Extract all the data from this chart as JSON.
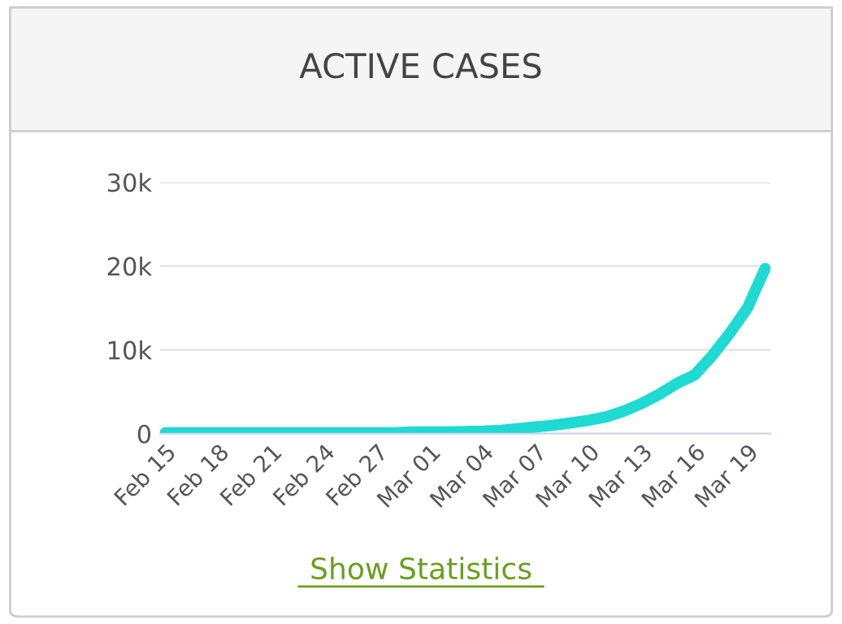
{
  "chart_data": {
    "type": "line",
    "title": "ACTIVE CASES",
    "categories": [
      "Feb 15",
      null,
      null,
      "Feb 18",
      null,
      null,
      "Feb 21",
      null,
      null,
      "Feb 24",
      null,
      null,
      "Feb 27",
      null,
      null,
      "Mar 01",
      null,
      null,
      "Mar 04",
      null,
      null,
      "Mar 07",
      null,
      null,
      "Mar 10",
      null,
      null,
      "Mar 13",
      null,
      null,
      "Mar 16",
      null,
      null,
      "Mar 19",
      null
    ],
    "series": [
      {
        "color": "#1fd9d3",
        "values": [
          100,
          100,
          100,
          100,
          100,
          100,
          100,
          100,
          100,
          100,
          100,
          100,
          100,
          100,
          200,
          200,
          200,
          250,
          300,
          400,
          600,
          800,
          1000,
          1300,
          1600,
          2000,
          2700,
          3600,
          4700,
          6000,
          7000,
          9300,
          12000,
          15000,
          19700
        ]
      }
    ],
    "ylim": [
      0,
      30000
    ],
    "yticks": [
      0,
      {
        "value": 10000,
        "label": "10k"
      },
      {
        "value": 20000,
        "label": "20k"
      },
      {
        "value": 30000,
        "label": "30k"
      }
    ],
    "grid": "y",
    "marker": "none",
    "line_style": "solid",
    "annotations": [
      "Show Statistics"
    ]
  }
}
